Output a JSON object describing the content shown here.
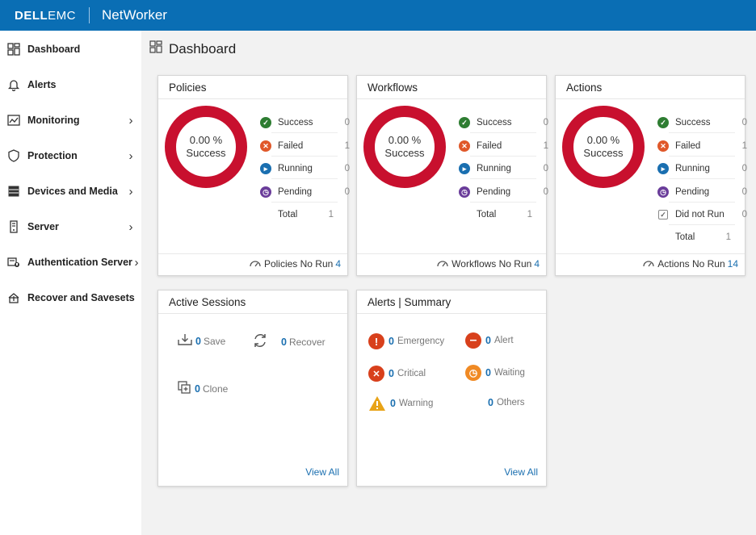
{
  "header": {
    "brand_dell": "DELL",
    "brand_emc": "EMC",
    "product": "NetWorker"
  },
  "sidebar": {
    "items": [
      {
        "label": "Dashboard",
        "icon": "dashboard-icon",
        "has_submenu": false
      },
      {
        "label": "Alerts",
        "icon": "bell-icon",
        "has_submenu": false
      },
      {
        "label": "Monitoring",
        "icon": "monitor-chart-icon",
        "has_submenu": true
      },
      {
        "label": "Protection",
        "icon": "shield-icon",
        "has_submenu": true
      },
      {
        "label": "Devices and Media",
        "icon": "storage-icon",
        "has_submenu": true
      },
      {
        "label": "Server",
        "icon": "server-icon",
        "has_submenu": true
      },
      {
        "label": "Authentication Server",
        "icon": "auth-server-icon",
        "has_submenu": true
      },
      {
        "label": "Recover and Savesets",
        "icon": "recover-icon",
        "has_submenu": false
      }
    ]
  },
  "page": {
    "title": "Dashboard"
  },
  "policies": {
    "title": "Policies",
    "percent": "0.00 %",
    "status": "Success",
    "rows": [
      {
        "label": "Success",
        "value": "0"
      },
      {
        "label": "Failed",
        "value": "1"
      },
      {
        "label": "Running",
        "value": "0"
      },
      {
        "label": "Pending",
        "value": "0"
      }
    ],
    "total_label": "Total",
    "total_value": "1",
    "norun_label": "Policies No Run",
    "norun_value": "4"
  },
  "workflows": {
    "title": "Workflows",
    "percent": "0.00 %",
    "status": "Success",
    "rows": [
      {
        "label": "Success",
        "value": "0"
      },
      {
        "label": "Failed",
        "value": "1"
      },
      {
        "label": "Running",
        "value": "0"
      },
      {
        "label": "Pending",
        "value": "0"
      }
    ],
    "total_label": "Total",
    "total_value": "1",
    "norun_label": "Workflows No Run",
    "norun_value": "4"
  },
  "actions": {
    "title": "Actions",
    "percent": "0.00 %",
    "status": "Success",
    "rows": [
      {
        "label": "Success",
        "value": "0"
      },
      {
        "label": "Failed",
        "value": "1"
      },
      {
        "label": "Running",
        "value": "0"
      },
      {
        "label": "Pending",
        "value": "0"
      },
      {
        "label": "Did not Run",
        "value": "0"
      }
    ],
    "total_label": "Total",
    "total_value": "1",
    "norun_label": "Actions No Run",
    "norun_value": "14"
  },
  "sessions": {
    "title": "Active Sessions",
    "save_count": "0",
    "save_label": "Save",
    "recover_count": "0",
    "recover_label": "Recover",
    "clone_count": "0",
    "clone_label": "Clone",
    "view_all": "View All"
  },
  "alerts_summary": {
    "title": "Alerts | Summary",
    "emergency_count": "0",
    "emergency_label": "Emergency",
    "alert_count": "0",
    "alert_label": "Alert",
    "critical_count": "0",
    "critical_label": "Critical",
    "waiting_count": "0",
    "waiting_label": "Waiting",
    "warning_count": "0",
    "warning_label": "Warning",
    "others_count": "0",
    "others_label": "Others",
    "view_all": "View All"
  },
  "colors": {
    "header_bg": "#0a6eb4",
    "donut_red": "#c8102e",
    "success_green": "#2e7d32",
    "failed_orange": "#e0582a",
    "running_blue": "#1a6fb0",
    "pending_purple": "#6a3d9a",
    "link_blue": "#1a6fb0"
  }
}
